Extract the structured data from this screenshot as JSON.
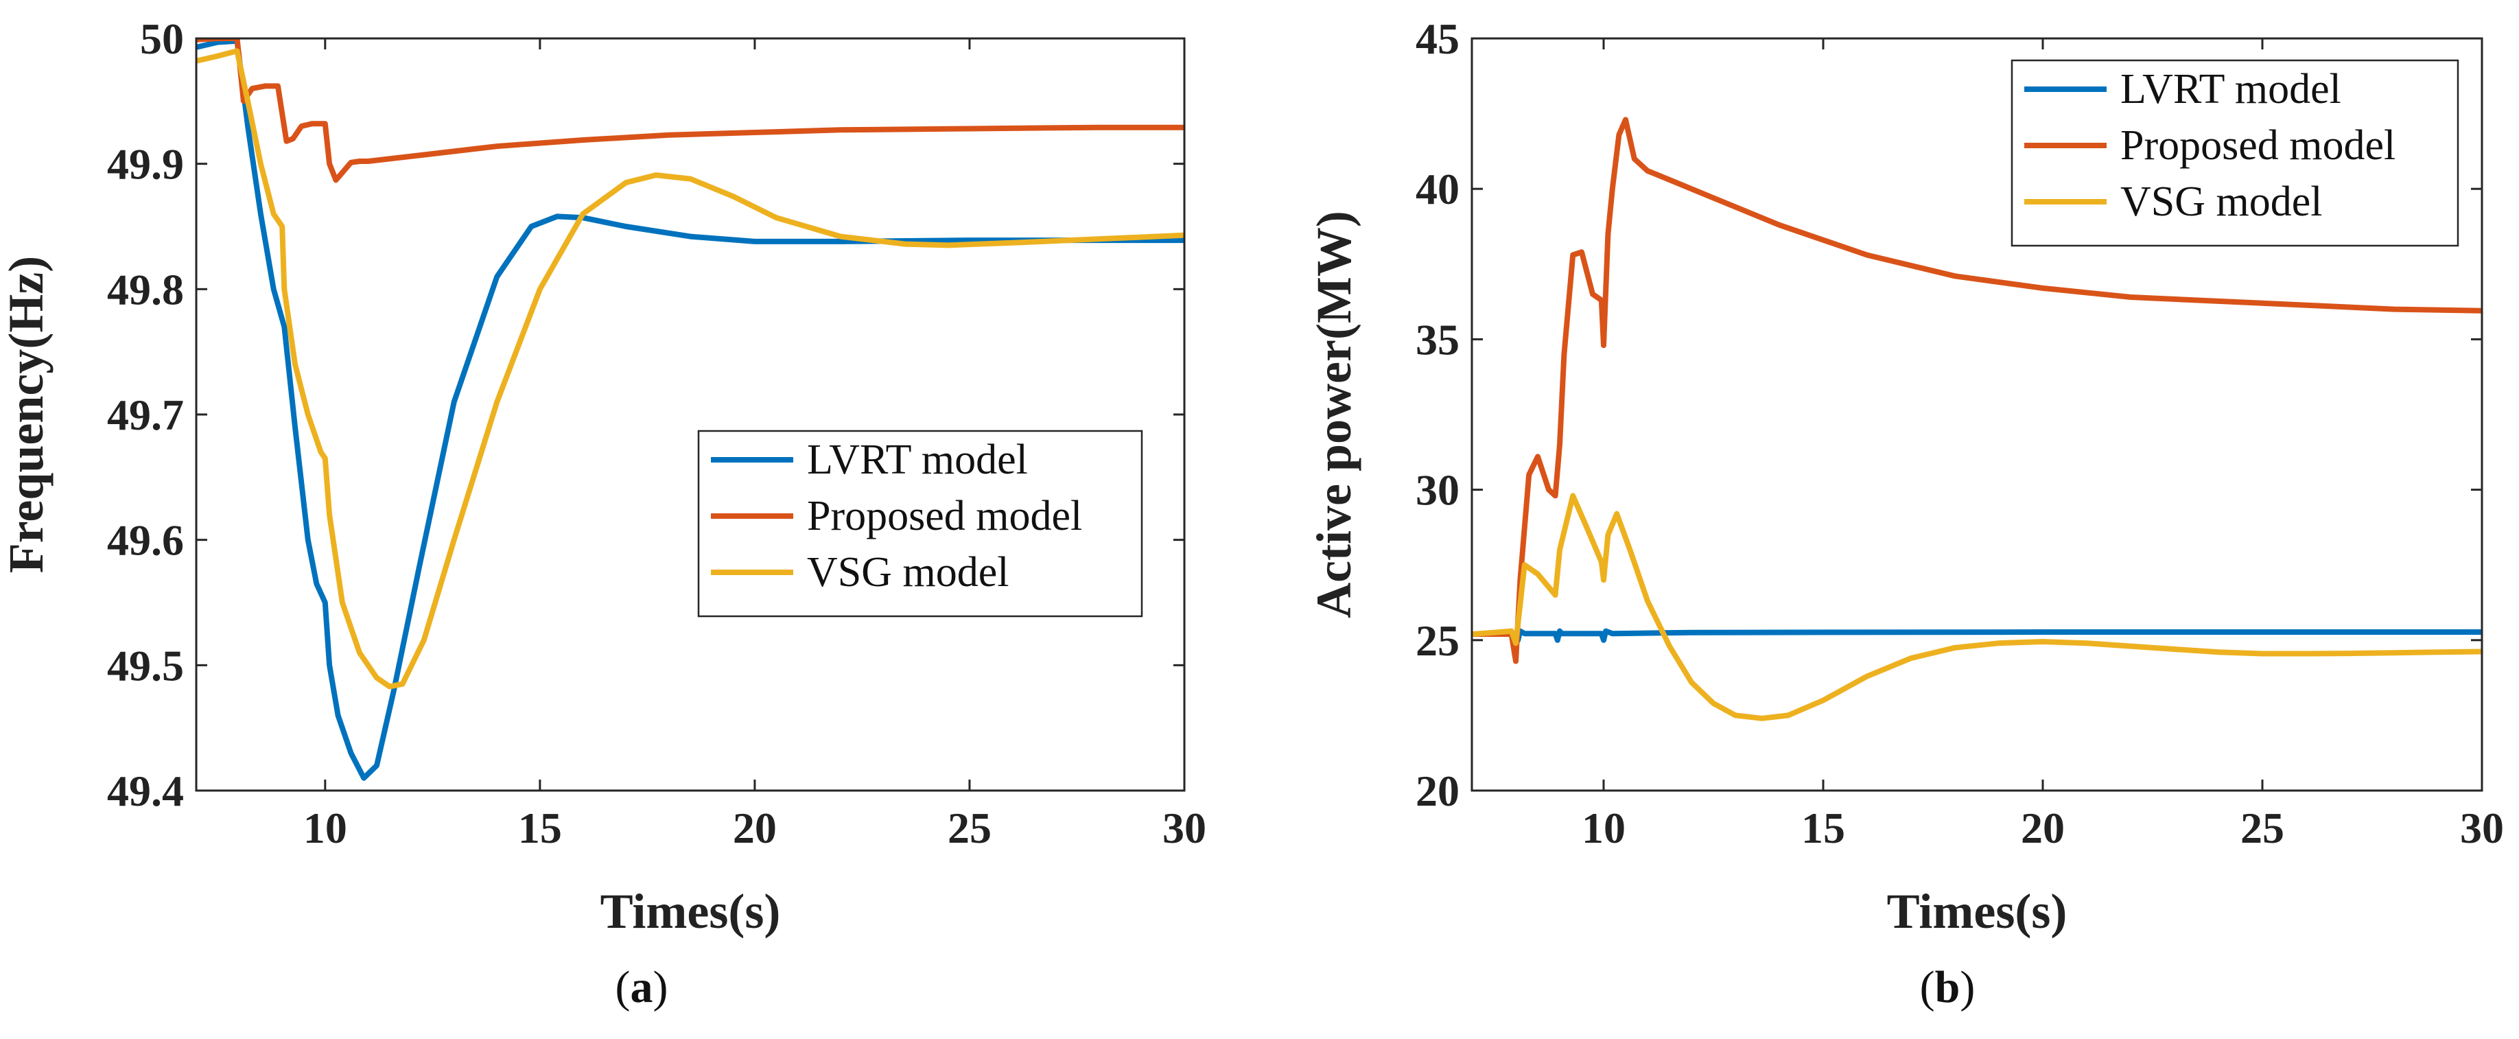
{
  "chart_data": [
    {
      "type": "line",
      "caption": "a",
      "xlabel": "Times(s)",
      "ylabel": "Frequency(Hz)",
      "xlim": [
        7,
        30
      ],
      "ylim": [
        49.4,
        50.0
      ],
      "xticks": [
        10,
        15,
        20,
        25,
        30
      ],
      "xtick_labels": [
        "10",
        "15",
        "20",
        "25",
        "30"
      ],
      "yticks": [
        49.4,
        49.5,
        49.6,
        49.7,
        49.8,
        49.9,
        50.0
      ],
      "ytick_labels": [
        "49.4",
        "49.5",
        "49.6",
        "49.7",
        "49.8",
        "49.9",
        "50"
      ],
      "legend_position": "center-right",
      "series": [
        {
          "name": "LVRT model",
          "color": "#0072BD",
          "x": [
            7,
            7.5,
            7.95,
            8.2,
            8.5,
            8.8,
            9.05,
            9.3,
            9.6,
            9.8,
            10.0,
            10.1,
            10.3,
            10.6,
            10.9,
            11.2,
            11.6,
            12.2,
            13.0,
            14.0,
            14.8,
            15.4,
            16.0,
            17.0,
            18.5,
            20.0,
            22.0,
            25.0,
            28.0,
            30.0
          ],
          "y": [
            49.993,
            49.997,
            49.998,
            49.93,
            49.86,
            49.8,
            49.77,
            49.69,
            49.6,
            49.565,
            49.55,
            49.5,
            49.46,
            49.43,
            49.41,
            49.42,
            49.48,
            49.58,
            49.71,
            49.81,
            49.85,
            49.858,
            49.857,
            49.85,
            49.842,
            49.838,
            49.838,
            49.839,
            49.839,
            49.839
          ]
        },
        {
          "name": "Proposed model",
          "color": "#D95319",
          "x": [
            7,
            7.5,
            7.95,
            8.1,
            8.3,
            8.6,
            8.9,
            9.0,
            9.1,
            9.25,
            9.45,
            9.7,
            10.0,
            10.1,
            10.25,
            10.4,
            10.6,
            10.8,
            11.0,
            11.5,
            12.5,
            14.0,
            16.0,
            18.0,
            20.0,
            22.0,
            25.0,
            28.0,
            30.0
          ],
          "y": [
            49.999,
            50.0,
            50.0,
            49.95,
            49.96,
            49.962,
            49.962,
            49.94,
            49.918,
            49.92,
            49.93,
            49.932,
            49.932,
            49.9,
            49.887,
            49.893,
            49.901,
            49.902,
            49.902,
            49.904,
            49.908,
            49.914,
            49.919,
            49.923,
            49.925,
            49.927,
            49.928,
            49.929,
            49.929
          ]
        },
        {
          "name": "VSG model",
          "color": "#EDB120",
          "x": [
            7,
            7.5,
            7.95,
            8.2,
            8.5,
            8.8,
            9.0,
            9.05,
            9.3,
            9.6,
            9.9,
            10.0,
            10.1,
            10.4,
            10.8,
            11.2,
            11.5,
            11.8,
            12.3,
            13.0,
            14.0,
            15.0,
            16.0,
            17.0,
            17.7,
            18.5,
            19.5,
            20.5,
            22.0,
            23.5,
            24.5,
            26.0,
            28.0,
            30.0
          ],
          "y": [
            49.982,
            49.986,
            49.99,
            49.95,
            49.9,
            49.86,
            49.85,
            49.8,
            49.74,
            49.7,
            49.67,
            49.665,
            49.62,
            49.55,
            49.51,
            49.49,
            49.483,
            49.485,
            49.52,
            49.6,
            49.71,
            49.8,
            49.86,
            49.885,
            49.891,
            49.888,
            49.874,
            49.857,
            49.842,
            49.836,
            49.835,
            49.837,
            49.84,
            49.843
          ]
        }
      ]
    },
    {
      "type": "line",
      "caption": "b",
      "xlabel": "Times(s)",
      "ylabel": "Active power(MW)",
      "xlim": [
        7,
        30
      ],
      "ylim": [
        20,
        45
      ],
      "xticks": [
        10,
        15,
        20,
        25,
        30
      ],
      "xtick_labels": [
        "10",
        "15",
        "20",
        "25",
        "30"
      ],
      "yticks": [
        20,
        25,
        30,
        35,
        40,
        45
      ],
      "ytick_labels": [
        "20",
        "25",
        "30",
        "35",
        "40",
        "45"
      ],
      "legend_position": "top-right",
      "series": [
        {
          "name": "LVRT model",
          "color": "#0072BD",
          "x": [
            7,
            7.5,
            8.0,
            8.05,
            8.1,
            8.2,
            8.9,
            8.95,
            9.0,
            9.05,
            9.2,
            9.95,
            10.0,
            10.05,
            10.2,
            12.0,
            15.0,
            20.0,
            25.0,
            30.0
          ],
          "y": [
            25.2,
            25.2,
            25.2,
            25.0,
            25.3,
            25.22,
            25.22,
            25.0,
            25.3,
            25.22,
            25.22,
            25.22,
            25.0,
            25.3,
            25.22,
            25.25,
            25.26,
            25.27,
            25.27,
            25.27
          ],
          "y_note": "steady 25.2 MW with small switching spikes"
        },
        {
          "name": "Proposed model",
          "color": "#D95319",
          "x": [
            7,
            7.5,
            7.9,
            8.0,
            8.1,
            8.3,
            8.5,
            8.75,
            8.9,
            9.0,
            9.1,
            9.3,
            9.5,
            9.75,
            9.95,
            10.0,
            10.1,
            10.2,
            10.35,
            10.5,
            10.7,
            11.0,
            11.5,
            12.5,
            14.0,
            16.0,
            18.0,
            20.0,
            22.0,
            25.0,
            28.0,
            30.0
          ],
          "y": [
            25.2,
            25.2,
            25.2,
            24.3,
            27.0,
            30.5,
            31.1,
            30.0,
            29.8,
            31.5,
            34.5,
            37.8,
            37.9,
            36.5,
            36.3,
            34.8,
            38.5,
            40.0,
            41.8,
            42.3,
            41.0,
            40.6,
            40.3,
            39.7,
            38.8,
            37.8,
            37.1,
            36.7,
            36.4,
            36.2,
            36.0,
            35.95
          ]
        },
        {
          "name": "VSG model",
          "color": "#EDB120",
          "x": [
            7,
            7.5,
            7.9,
            8.0,
            8.2,
            8.5,
            8.9,
            9.0,
            9.3,
            9.6,
            9.95,
            10.0,
            10.1,
            10.3,
            10.6,
            11.0,
            11.5,
            12.0,
            12.5,
            13.0,
            13.6,
            14.2,
            15.0,
            16.0,
            17.0,
            18.0,
            19.0,
            20.0,
            21.0,
            22.0,
            23.0,
            24.0,
            25.0,
            26.0,
            27.0,
            28.0,
            29.0,
            30.0
          ],
          "y": [
            25.2,
            25.25,
            25.3,
            24.9,
            27.5,
            27.2,
            26.5,
            28.0,
            29.8,
            28.8,
            27.6,
            27.0,
            28.5,
            29.2,
            28.0,
            26.3,
            24.8,
            23.6,
            22.9,
            22.5,
            22.4,
            22.5,
            23.0,
            23.8,
            24.4,
            24.75,
            24.9,
            24.95,
            24.9,
            24.8,
            24.7,
            24.6,
            24.55,
            24.55,
            24.56,
            24.58,
            24.6,
            24.62
          ]
        }
      ]
    }
  ]
}
